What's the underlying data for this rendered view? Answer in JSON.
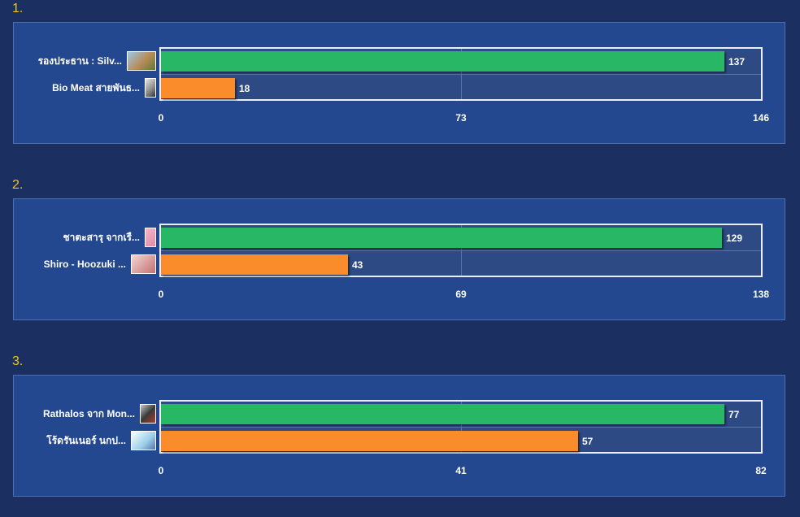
{
  "chart_data": [
    {
      "type": "bar",
      "orientation": "horizontal",
      "rank_label": "1.",
      "categories": [
        "รองประธาน : Silv...",
        "Bio Meat สายพันธ..."
      ],
      "values": [
        137,
        18
      ],
      "colors": [
        "#27b765",
        "#fb8c2c"
      ],
      "x_ticks": [
        "0",
        "73",
        "146"
      ],
      "xlim": [
        0,
        146
      ],
      "grid": true
    },
    {
      "type": "bar",
      "orientation": "horizontal",
      "rank_label": "2.",
      "categories": [
        "ชาตะสารุ จากเรื่...",
        "Shiro - Hoozuki ..."
      ],
      "values": [
        129,
        43
      ],
      "colors": [
        "#27b765",
        "#fb8c2c"
      ],
      "x_ticks": [
        "0",
        "69",
        "138"
      ],
      "xlim": [
        0,
        138
      ],
      "grid": true
    },
    {
      "type": "bar",
      "orientation": "horizontal",
      "rank_label": "3.",
      "categories": [
        "Rathalos จาก Mon...",
        "โร้ดรันเนอร์ นกป..."
      ],
      "values": [
        77,
        57
      ],
      "colors": [
        "#27b765",
        "#fb8c2c"
      ],
      "x_ticks": [
        "0",
        "41",
        "82"
      ],
      "xlim": [
        0,
        82
      ],
      "grid": true
    }
  ],
  "thumbnails": [
    [
      "thumbnail-image",
      "thumbnail-image"
    ],
    [
      "thumbnail-image",
      "thumbnail-image"
    ],
    [
      "thumbnail-image",
      "thumbnail-image"
    ]
  ]
}
